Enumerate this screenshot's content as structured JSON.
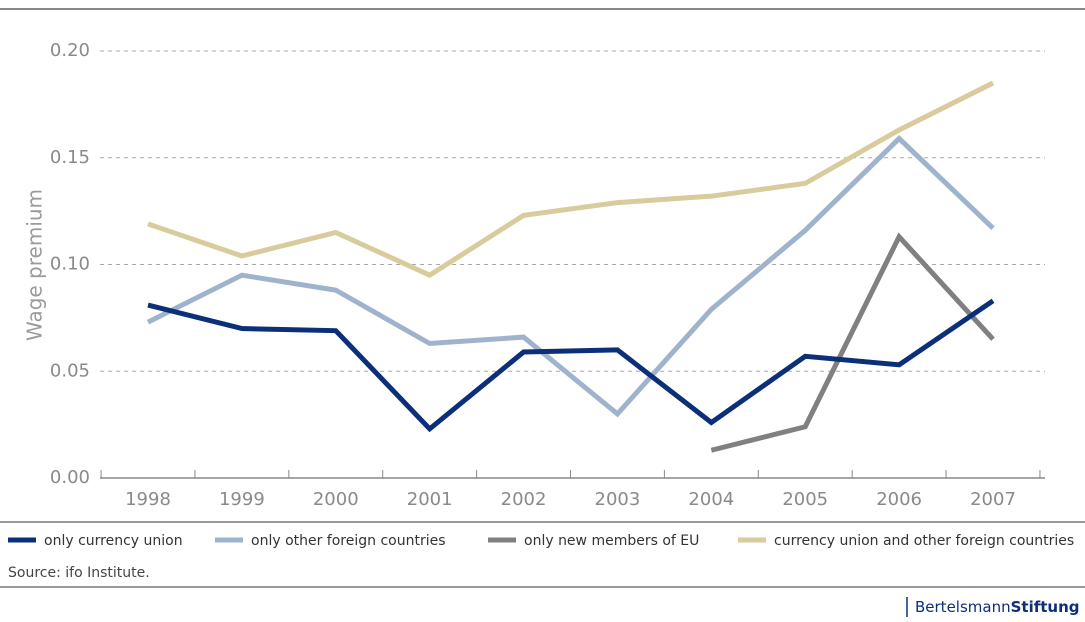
{
  "chart_data": {
    "type": "line",
    "y_label": "Wage premium",
    "x": [
      "1998",
      "1999",
      "2000",
      "2001",
      "2002",
      "2003",
      "2004",
      "2005",
      "2006",
      "2007"
    ],
    "series": [
      {
        "name": "only currency union",
        "color": "#0c2f7a",
        "values": [
          0.081,
          0.07,
          0.069,
          0.023,
          0.059,
          0.06,
          0.026,
          0.057,
          0.053,
          0.083
        ]
      },
      {
        "name": "only other foreign countries",
        "color": "#9fb4cc",
        "values": [
          0.073,
          0.095,
          0.088,
          0.063,
          0.066,
          0.03,
          0.079,
          0.116,
          0.159,
          0.117
        ]
      },
      {
        "name": "only new members of EU",
        "color": "#808080",
        "values": [
          null,
          null,
          null,
          null,
          null,
          null,
          0.013,
          0.024,
          0.113,
          0.065
        ]
      },
      {
        "name": "currency union and other foreign countries",
        "color": "#d8cb9c",
        "values": [
          0.119,
          0.104,
          0.115,
          0.095,
          0.123,
          0.129,
          0.132,
          0.138,
          0.163,
          0.185
        ]
      }
    ],
    "ylim": [
      0,
      0.2
    ],
    "yticks": [
      {
        "value": 0,
        "label": "0.00"
      },
      {
        "value": 0.05,
        "label": "0.05"
      },
      {
        "value": 0.1,
        "label": "0.10"
      },
      {
        "value": 0.15,
        "label": "0.15"
      },
      {
        "value": 0.2,
        "label": "0.20"
      }
    ],
    "grid": true,
    "source": "Source: ifo Institute.",
    "logo": [
      "Bertelsmann",
      "Stiftung"
    ]
  }
}
